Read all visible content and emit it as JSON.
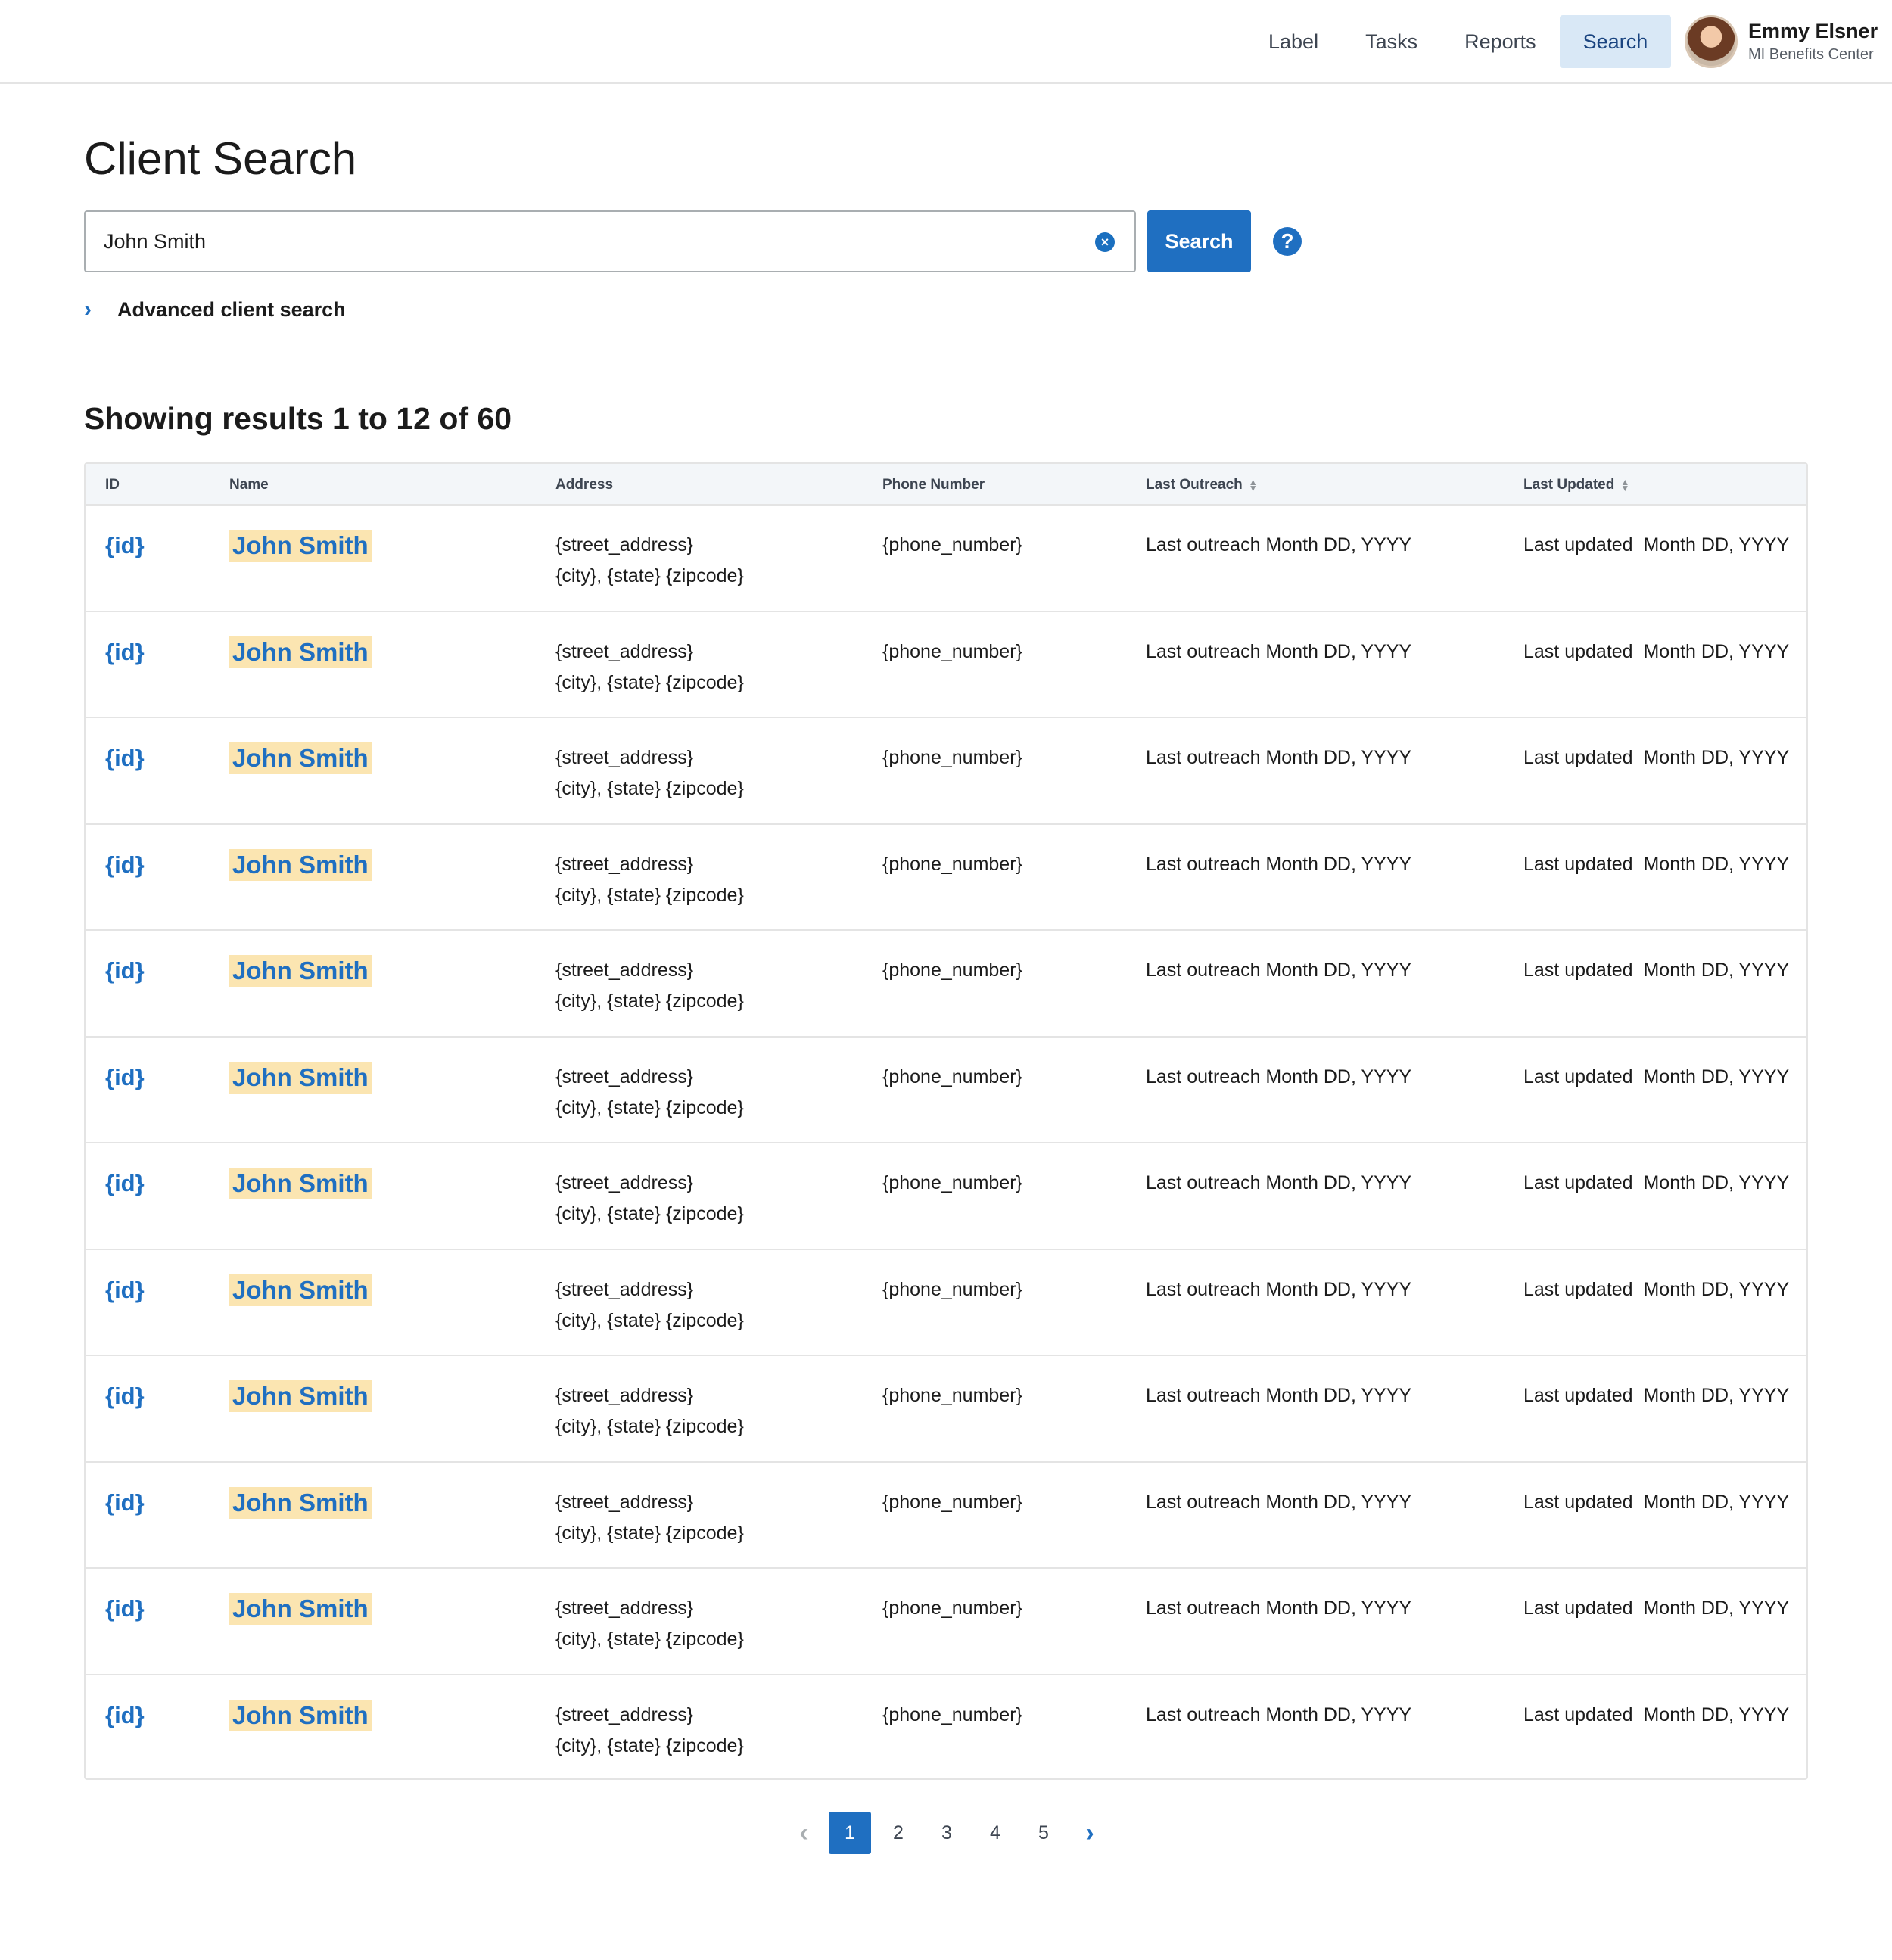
{
  "nav": {
    "items": [
      {
        "label": "Label",
        "active": false
      },
      {
        "label": "Tasks",
        "active": false
      },
      {
        "label": "Reports",
        "active": false
      },
      {
        "label": "Search",
        "active": true
      }
    ]
  },
  "user": {
    "name": "Emmy Elsner",
    "org": "MI Benefits Center"
  },
  "page": {
    "title": "Client Search"
  },
  "search": {
    "value": "John Smith",
    "button_label": "Search",
    "help_icon": "?",
    "clear_icon": "×"
  },
  "advanced": {
    "label": "Advanced client search",
    "icon": "›"
  },
  "results": {
    "heading": "Showing results 1 to 12 of 60"
  },
  "table": {
    "columns": [
      "ID",
      "Name",
      "Address",
      "Phone Number",
      "Last Outreach",
      "Last Updated"
    ],
    "sort_icon": "▲▼",
    "rows": [
      {
        "id": "{id}",
        "name": "John Smith",
        "street": "{street_address}",
        "city": "{city}, {state} {zipcode}",
        "phone": "{phone_number}",
        "outreach": "Last outreach Month DD, YYYY",
        "updated": "Last updated  Month DD, YYYY"
      },
      {
        "id": "{id}",
        "name": "John Smith",
        "street": "{street_address}",
        "city": "{city}, {state} {zipcode}",
        "phone": "{phone_number}",
        "outreach": "Last outreach Month DD, YYYY",
        "updated": "Last updated  Month DD, YYYY"
      },
      {
        "id": "{id}",
        "name": "John Smith",
        "street": "{street_address}",
        "city": "{city}, {state} {zipcode}",
        "phone": "{phone_number}",
        "outreach": "Last outreach Month DD, YYYY",
        "updated": "Last updated  Month DD, YYYY"
      },
      {
        "id": "{id}",
        "name": "John Smith",
        "street": "{street_address}",
        "city": "{city}, {state} {zipcode}",
        "phone": "{phone_number}",
        "outreach": "Last outreach Month DD, YYYY",
        "updated": "Last updated  Month DD, YYYY"
      },
      {
        "id": "{id}",
        "name": "John Smith",
        "street": "{street_address}",
        "city": "{city}, {state} {zipcode}",
        "phone": "{phone_number}",
        "outreach": "Last outreach Month DD, YYYY",
        "updated": "Last updated  Month DD, YYYY"
      },
      {
        "id": "{id}",
        "name": "John Smith",
        "street": "{street_address}",
        "city": "{city}, {state} {zipcode}",
        "phone": "{phone_number}",
        "outreach": "Last outreach Month DD, YYYY",
        "updated": "Last updated  Month DD, YYYY"
      },
      {
        "id": "{id}",
        "name": "John Smith",
        "street": "{street_address}",
        "city": "{city}, {state} {zipcode}",
        "phone": "{phone_number}",
        "outreach": "Last outreach Month DD, YYYY",
        "updated": "Last updated  Month DD, YYYY"
      },
      {
        "id": "{id}",
        "name": "John Smith",
        "street": "{street_address}",
        "city": "{city}, {state} {zipcode}",
        "phone": "{phone_number}",
        "outreach": "Last outreach Month DD, YYYY",
        "updated": "Last updated  Month DD, YYYY"
      },
      {
        "id": "{id}",
        "name": "John Smith",
        "street": "{street_address}",
        "city": "{city}, {state} {zipcode}",
        "phone": "{phone_number}",
        "outreach": "Last outreach Month DD, YYYY",
        "updated": "Last updated  Month DD, YYYY"
      },
      {
        "id": "{id}",
        "name": "John Smith",
        "street": "{street_address}",
        "city": "{city}, {state} {zipcode}",
        "phone": "{phone_number}",
        "outreach": "Last outreach Month DD, YYYY",
        "updated": "Last updated  Month DD, YYYY"
      },
      {
        "id": "{id}",
        "name": "John Smith",
        "street": "{street_address}",
        "city": "{city}, {state} {zipcode}",
        "phone": "{phone_number}",
        "outreach": "Last outreach Month DD, YYYY",
        "updated": "Last updated  Month DD, YYYY"
      },
      {
        "id": "{id}",
        "name": "John Smith",
        "street": "{street_address}",
        "city": "{city}, {state} {zipcode}",
        "phone": "{phone_number}",
        "outreach": "Last outreach Month DD, YYYY",
        "updated": "Last updated  Month DD, YYYY"
      }
    ]
  },
  "pagination": {
    "prev_icon": "‹",
    "next_icon": "›",
    "pages": [
      "1",
      "2",
      "3",
      "4",
      "5"
    ],
    "current": "1"
  },
  "colors": {
    "accent": "#1f6fc1",
    "highlight": "#fbe5b1",
    "nav_active_bg": "#d9e8f6"
  }
}
